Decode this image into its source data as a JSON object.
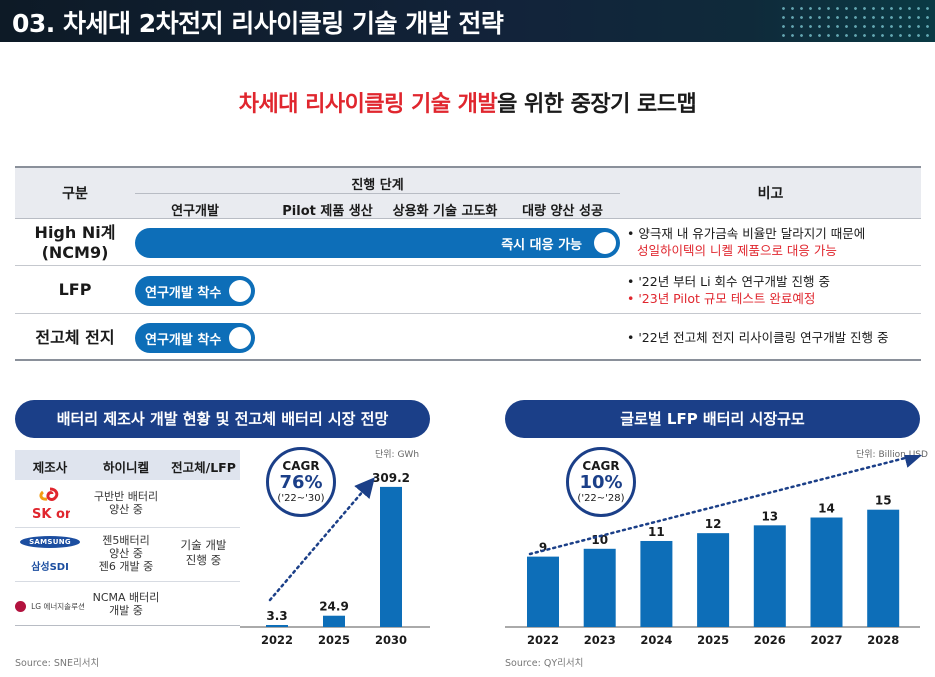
{
  "header": {
    "title": "03. 차세대 2차전지 리사이클링 기술 개발 전략"
  },
  "subtitle": {
    "red": "차세대 리사이클링 기술 개발",
    "rest": "을 위한 중장기 로드맵"
  },
  "roadmap": {
    "col_gubun": "구분",
    "col_stage": "진행 단계",
    "col_bigo": "비고",
    "stages": [
      "연구개발",
      "Pilot 제품 생산",
      "상용화 기술 고도화",
      "대량 양산 성공"
    ],
    "rows": [
      {
        "label_1": "High Ni계",
        "label_2": "(NCM9)",
        "bar_text": "즉시 대응 가능",
        "note_1": "• 양극재 내 유가금속 비율만 달라지기 때문에",
        "note_2": "성일하이텍의 니켈 제품으로 대응 가능"
      },
      {
        "label": "LFP",
        "bar_text": "연구개발 착수",
        "note_1": "• '22년 부터 Li 회수 연구개발 진행 중",
        "note_2": "• '23년 Pilot 규모 테스트 완료예정"
      },
      {
        "label": "전고체 전지",
        "bar_text": "연구개발 착수",
        "note_1": "• '22년 전고체 전지 리사이클링 연구개발 진행 중"
      }
    ]
  },
  "left_panel": {
    "title": "배터리 제조사 개발 현황 및 전고체 배터리 시장 전망",
    "table": {
      "headers": [
        "제조사",
        "하이니켈",
        "전고체/LFP"
      ],
      "rows": [
        {
          "maker_logo": "SK on",
          "hinickel": [
            "구반반 배터리",
            "양산 중"
          ]
        },
        {
          "maker_logo": "SAMSUNG",
          "maker_sub": "삼성SDI",
          "hinickel": [
            "젠5배터리",
            "양산 중",
            "젠6 개발 중"
          ]
        },
        {
          "maker_logo": "LG 에너지솔루션",
          "hinickel": [
            "NCMA 배터리",
            "개발 중"
          ]
        }
      ],
      "solid_state": [
        "기술 개발",
        "진행 중"
      ]
    },
    "unit": "단위: GWh",
    "cagr": {
      "label": "CAGR",
      "value": "76%",
      "period": "('22~'30)"
    },
    "source": "Source: SNE리서치"
  },
  "right_panel": {
    "title": "글로벌 LFP 배터리 시장규모",
    "unit": "단위: Billion USD",
    "cagr": {
      "label": "CAGR",
      "value": "10%",
      "period": "('22~'28)"
    },
    "source": "Source: QY리서치"
  },
  "chart_data": [
    {
      "type": "bar",
      "title": "전고체 배터리 시장 전망",
      "categories": [
        "2022",
        "2025",
        "2030"
      ],
      "values": [
        3.3,
        24.9,
        309.2
      ],
      "value_labels": [
        "3.3",
        "24.9",
        "309.2"
      ],
      "unit": "GWh",
      "ylim": [
        0,
        320
      ],
      "color": "#0d6eb8"
    },
    {
      "type": "bar",
      "title": "글로벌 LFP 배터리 시장규모",
      "categories": [
        "2022",
        "2023",
        "2024",
        "2025",
        "2026",
        "2027",
        "2028"
      ],
      "values": [
        9,
        10,
        11,
        12,
        13,
        14,
        15
      ],
      "value_labels": [
        "9",
        "10",
        "11",
        "12",
        "13",
        "14",
        "15"
      ],
      "unit": "Billion USD",
      "ylim": [
        0,
        15.6
      ],
      "color": "#0d6eb8"
    }
  ]
}
